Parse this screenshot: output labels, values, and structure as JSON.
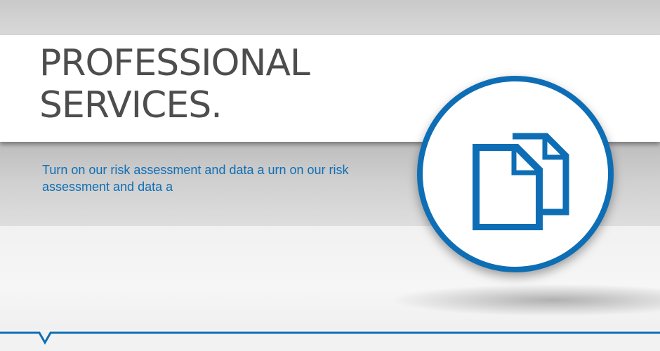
{
  "banner": {
    "title_line1": "PROFESSIONAL",
    "title_line2": "SERVICES.",
    "subtitle": "Turn on our risk assessment and data a urn on our risk assessment and data a"
  },
  "icon": {
    "name": "documents-icon",
    "color": "#0e6eb5"
  },
  "colors": {
    "accent": "#0e6eb5",
    "title_text": "#4d4d4d"
  }
}
